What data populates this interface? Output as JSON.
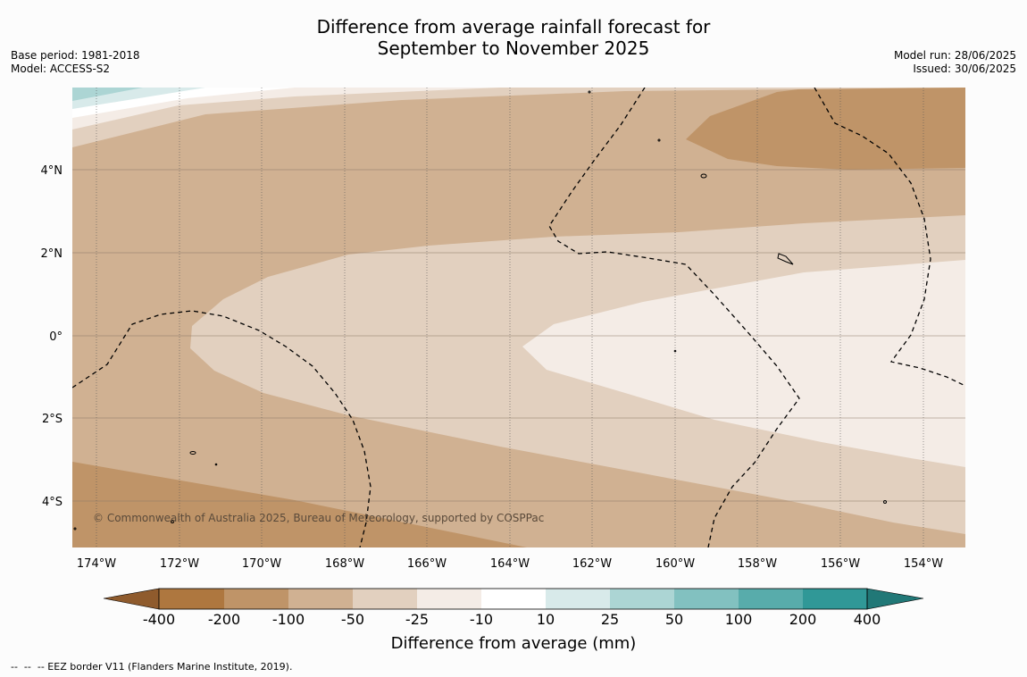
{
  "title": {
    "line1": "Difference from average rainfall forecast for",
    "line2": "September to November 2025"
  },
  "meta_left": {
    "base_period": "Base period: 1981-2018",
    "model": "Model: ACCESS-S2"
  },
  "meta_right": {
    "model_run": "Model run: 28/06/2025",
    "issued": "Issued: 30/06/2025"
  },
  "copyright": "© Commonwealth of Australia 2025, Bureau of Meteorology, supported by COSPPac",
  "lon_ticks": [
    "174°W",
    "172°W",
    "170°W",
    "168°W",
    "166°W",
    "164°W",
    "162°W",
    "160°W",
    "158°W",
    "156°W",
    "154°W"
  ],
  "lat_ticks": [
    "4°N",
    "2°N",
    "0°",
    "2°S",
    "4°S"
  ],
  "colorbar": {
    "title": "Difference from average (mm)",
    "labels": [
      "-400",
      "-200",
      "-100",
      "-50",
      "-25",
      "-10",
      "10",
      "25",
      "50",
      "100",
      "200",
      "400"
    ],
    "colors": [
      "#8f5b2d",
      "#ae773f",
      "#bf9468",
      "#d0b192",
      "#e2d0bf",
      "#f4ece6",
      "#ffffff",
      "#d8eaea",
      "#acd5d4",
      "#82c1c0",
      "#58acab",
      "#309897",
      "#217877"
    ]
  },
  "footer": "--  --  -- EEZ border V11 (Flanders Marine Institute, 2019)."
}
